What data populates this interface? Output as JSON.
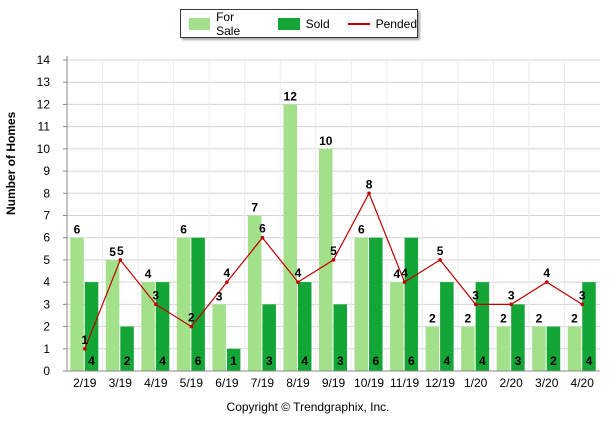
{
  "legend": {
    "for_sale": "For Sale",
    "sold": "Sold",
    "pended": "Pended"
  },
  "colors": {
    "for_sale": "#a3e08a",
    "sold": "#13a535",
    "pended": "#c00000"
  },
  "footer": "Copyright © Trendgraphix, Inc.",
  "chart_data": {
    "type": "bar",
    "ylabel": "Number of Homes",
    "xlabel": "",
    "ylim": [
      0,
      14
    ],
    "yticks": [
      0,
      1,
      2,
      3,
      4,
      5,
      6,
      7,
      8,
      9,
      10,
      11,
      12,
      13,
      14
    ],
    "grid": true,
    "legend_position": "top-center",
    "categories": [
      "2/19",
      "3/19",
      "4/19",
      "5/19",
      "6/19",
      "7/19",
      "8/19",
      "9/19",
      "10/19",
      "11/19",
      "12/19",
      "1/20",
      "2/20",
      "3/20",
      "4/20"
    ],
    "series": [
      {
        "name": "For Sale",
        "kind": "bar",
        "values": [
          6,
          5,
          4,
          6,
          3,
          7,
          12,
          10,
          6,
          4,
          2,
          2,
          2,
          2,
          2
        ]
      },
      {
        "name": "Sold",
        "kind": "bar",
        "values": [
          4,
          2,
          4,
          6,
          1,
          3,
          4,
          3,
          6,
          6,
          4,
          4,
          3,
          2,
          4
        ]
      },
      {
        "name": "Pended",
        "kind": "line",
        "values": [
          1,
          5,
          3,
          2,
          4,
          6,
          4,
          5,
          8,
          4,
          5,
          3,
          3,
          4,
          3
        ]
      }
    ]
  }
}
